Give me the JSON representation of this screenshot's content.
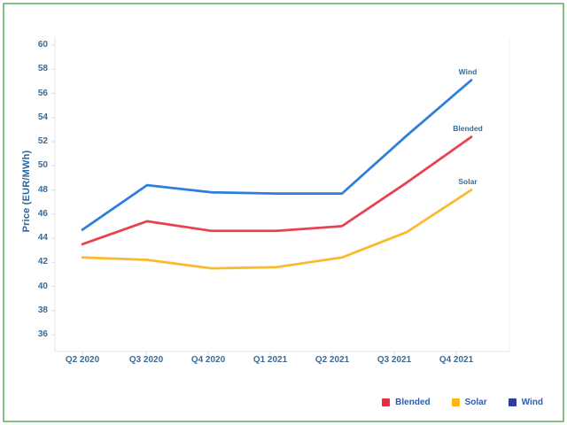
{
  "frame": {
    "border_color": "#84c184"
  },
  "chart_data": {
    "type": "line",
    "title": "",
    "xlabel": "",
    "ylabel": "Price (EUR/MWh)",
    "categories": [
      "Q2 2020",
      "Q3 2020",
      "Q4 2020",
      "Q1 2021",
      "Q2 2021",
      "Q3 2021",
      "Q4 2021"
    ],
    "series": [
      {
        "name": "Blended",
        "color": "#e8414f",
        "values": [
          43.5,
          45.4,
          44.6,
          44.6,
          45.0,
          48.6,
          52.4
        ]
      },
      {
        "name": "Solar",
        "color": "#fbba2d",
        "values": [
          42.4,
          42.2,
          41.5,
          41.6,
          42.4,
          44.5,
          48.0
        ]
      },
      {
        "name": "Wind",
        "color": "#2f7ed8",
        "values": [
          44.7,
          48.4,
          47.8,
          47.7,
          47.7,
          52.5,
          57.1
        ]
      }
    ],
    "ylim": [
      36,
      60
    ],
    "ytick_step": 2,
    "grid": false,
    "legend_position": "bottom-right",
    "legend": [
      {
        "label": "Blended",
        "swatch_color": "#ec2b3c"
      },
      {
        "label": "Solar",
        "swatch_color": "#ffb612"
      },
      {
        "label": "Wind",
        "swatch_color": "#2e3f9b"
      }
    ],
    "line_end_labels": [
      "Wind",
      "Blended",
      "Solar"
    ],
    "axis_text_color": "#3c6a93"
  }
}
